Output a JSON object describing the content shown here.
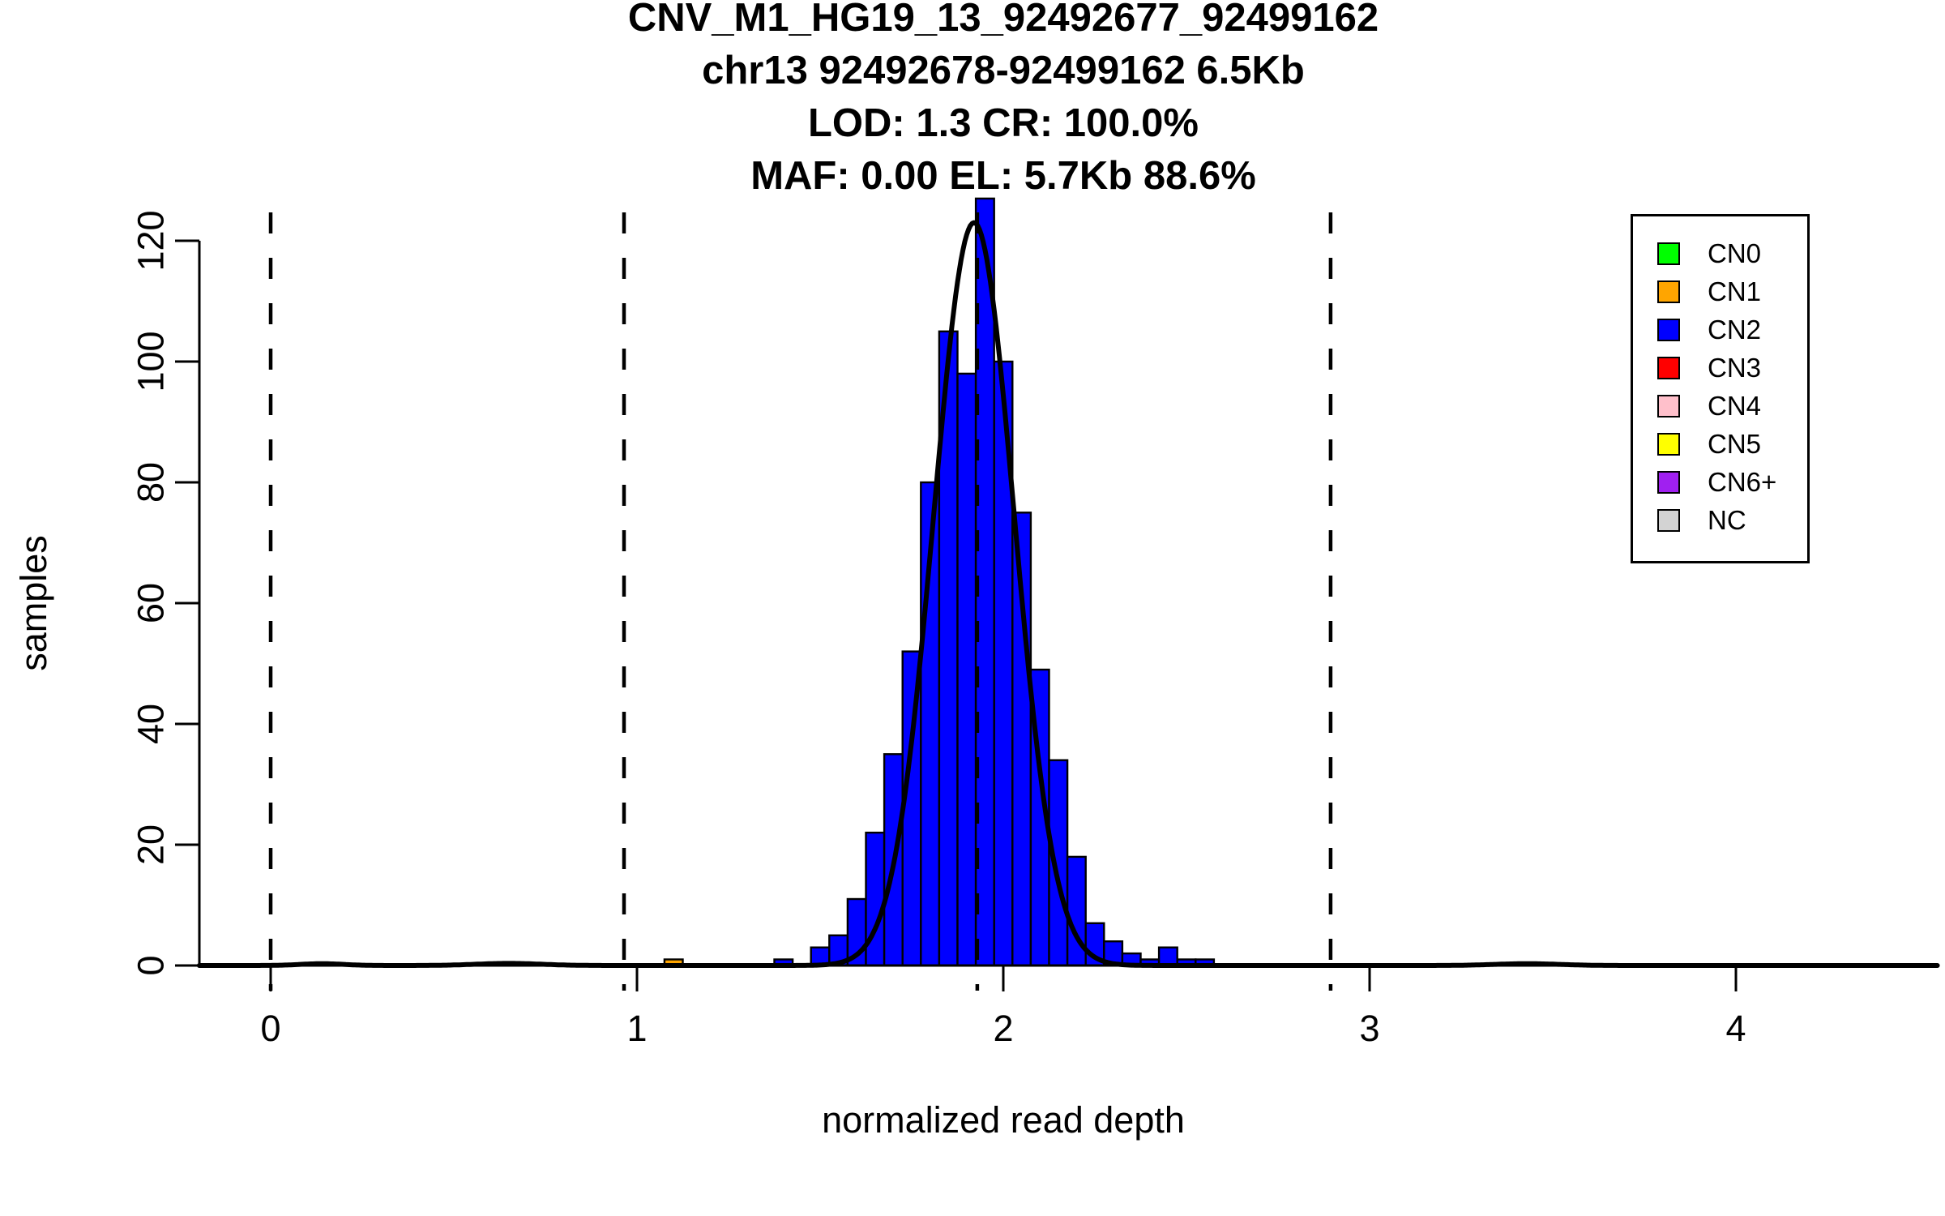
{
  "title": {
    "lines": [
      "CNV_M1_HG19_13_92492677_92499162",
      "chr13 92492678-92499162 6.5Kb",
      "LOD: 1.3 CR: 100.0%",
      "MAF: 0.00 EL: 5.7Kb 88.6%"
    ]
  },
  "chart_data": {
    "type": "bar",
    "subtype": "histogram-with-gaussian-fit",
    "title": "CNV_M1_HG19_13_92492677_92499162",
    "subtitle_lines": [
      "chr13 92492678-92499162 6.5Kb",
      "LOD: 1.3 CR: 100.0%",
      "MAF: 0.00 EL: 5.7Kb 88.6%"
    ],
    "xlabel": "normalized read depth",
    "ylabel": "samples",
    "xlim": [
      -0.195,
      4.55
    ],
    "ylim": [
      0,
      127
    ],
    "x_ticks": [
      0,
      1,
      2,
      3,
      4
    ],
    "y_ticks": [
      0,
      20,
      40,
      60,
      80,
      100,
      120
    ],
    "grid": false,
    "bin_width": 0.05,
    "bars": [
      {
        "x": 1.075,
        "count": 1,
        "cn": "CN1"
      },
      {
        "x": 1.375,
        "count": 1,
        "cn": "CN2"
      },
      {
        "x": 1.475,
        "count": 3,
        "cn": "CN2"
      },
      {
        "x": 1.525,
        "count": 5,
        "cn": "CN2"
      },
      {
        "x": 1.575,
        "count": 11,
        "cn": "CN2"
      },
      {
        "x": 1.625,
        "count": 22,
        "cn": "CN2"
      },
      {
        "x": 1.675,
        "count": 35,
        "cn": "CN2"
      },
      {
        "x": 1.725,
        "count": 52,
        "cn": "CN2"
      },
      {
        "x": 1.775,
        "count": 80,
        "cn": "CN2"
      },
      {
        "x": 1.825,
        "count": 105,
        "cn": "CN2"
      },
      {
        "x": 1.875,
        "count": 98,
        "cn": "CN2"
      },
      {
        "x": 1.925,
        "count": 127,
        "cn": "CN2"
      },
      {
        "x": 1.975,
        "count": 100,
        "cn": "CN2"
      },
      {
        "x": 2.025,
        "count": 75,
        "cn": "CN2"
      },
      {
        "x": 2.075,
        "count": 49,
        "cn": "CN2"
      },
      {
        "x": 2.125,
        "count": 34,
        "cn": "CN2"
      },
      {
        "x": 2.175,
        "count": 18,
        "cn": "CN2"
      },
      {
        "x": 2.225,
        "count": 7,
        "cn": "CN2"
      },
      {
        "x": 2.275,
        "count": 4,
        "cn": "CN2"
      },
      {
        "x": 2.325,
        "count": 2,
        "cn": "CN2"
      },
      {
        "x": 2.375,
        "count": 1,
        "cn": "CN2"
      },
      {
        "x": 2.425,
        "count": 3,
        "cn": "CN2"
      },
      {
        "x": 2.475,
        "count": 1,
        "cn": "CN2"
      },
      {
        "x": 2.525,
        "count": 1,
        "cn": "CN2"
      }
    ],
    "dashed_guides_x": [
      0,
      0.9645,
      1.929,
      2.8935
    ],
    "fit_curve": {
      "type": "gaussian-mixture",
      "components": [
        {
          "mean": 1.92,
          "sd": 0.11,
          "peak": 123
        },
        {
          "mean": 0.14,
          "sd": 0.06,
          "peak": 0.3
        },
        {
          "mean": 0.65,
          "sd": 0.09,
          "peak": 0.35
        },
        {
          "mean": 3.43,
          "sd": 0.09,
          "peak": 0.3
        }
      ]
    },
    "legend": {
      "position": "top-right",
      "items": [
        {
          "label": "CN0",
          "color": "#00FF00"
        },
        {
          "label": "CN1",
          "color": "#FFA500"
        },
        {
          "label": "CN2",
          "color": "#0000FF"
        },
        {
          "label": "CN3",
          "color": "#FF0000"
        },
        {
          "label": "CN4",
          "color": "#FFC0CB"
        },
        {
          "label": "CN5",
          "color": "#FFFF00"
        },
        {
          "label": "CN6+",
          "color": "#A020F0"
        },
        {
          "label": "NC",
          "color": "#D3D3D3"
        }
      ]
    },
    "colors": {
      "bar_fill_main": "#0000FF",
      "bar_border": "#000000",
      "curve": "#000000",
      "axis": "#000000",
      "background": "#FFFFFF"
    }
  }
}
